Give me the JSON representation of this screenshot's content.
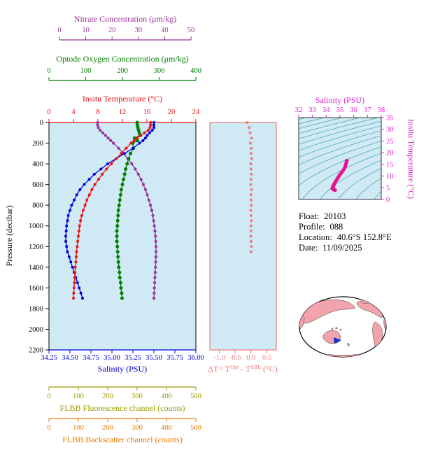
{
  "colors": {
    "nitrate": "#993399",
    "oxygen": "#007f00",
    "temperature": "#ee1111",
    "salinity": "#0000dd",
    "pressure": "#000000",
    "fluorescence": "#9a9a00",
    "backscatter": "#ee7700",
    "delta": "#ef7b7b",
    "ts_text": "#dd22cc",
    "ts_curve": "#ea1190",
    "contour": "#3aa3a3",
    "plot_bg": "#cfe9f5",
    "land": "#f2a3ab",
    "marker": "#1133cc"
  },
  "axes": {
    "nitrate": {
      "title": "Nitrate Concentration (μm/kg)",
      "ticks": [
        "0",
        "10",
        "20",
        "30",
        "40",
        "50"
      ],
      "min": 0,
      "max": 50
    },
    "oxygen": {
      "title": "Optode Oxygen Concentration (μm/kg)",
      "ticks": [
        "0",
        "100",
        "200",
        "300",
        "400"
      ],
      "min": 0,
      "max": 400
    },
    "temperature": {
      "title": "Insitu Temperature (°C)",
      "ticks": [
        "0",
        "4",
        "8",
        "12",
        "16",
        "20",
        "24"
      ],
      "min": 0,
      "max": 24
    },
    "pressure": {
      "title": "Pressure (decibar)",
      "ticks": [
        "0",
        "200",
        "400",
        "600",
        "800",
        "1000",
        "1200",
        "1400",
        "1600",
        "1800",
        "2000",
        "2200"
      ],
      "min": 0,
      "max": 2200
    },
    "salinity": {
      "title": "Salinity (PSU)",
      "ticks": [
        "34.25",
        "34.50",
        "34.75",
        "35.00",
        "35.25",
        "35.50",
        "35.75",
        "36.00"
      ],
      "min": 34.25,
      "max": 36.0
    },
    "fluorescence": {
      "title": "FLBB Fluorescence channel (counts)",
      "ticks": [
        "0",
        "100",
        "200",
        "300",
        "400",
        "500"
      ],
      "min": 0,
      "max": 500
    },
    "backscatter": {
      "title": "FLBB Backscatter channel (counts)",
      "ticks": [
        "0",
        "100",
        "200",
        "300",
        "400",
        "500"
      ],
      "min": 0,
      "max": 500
    },
    "delta": {
      "title_parts": [
        {
          "t": "ΔT= T"
        },
        {
          "t": "Opt",
          "sup": true
        },
        {
          "t": " - T"
        },
        {
          "t": "SBE",
          "sup": true
        },
        {
          "t": " (°C)"
        }
      ],
      "ticks": [
        "-1.0",
        "-0.5",
        "0.0",
        "0.5"
      ],
      "min": -1.3,
      "max": 0.8
    },
    "ts_x": {
      "title": "Salinity (PSU)",
      "ticks": [
        "32",
        "33",
        "34",
        "35",
        "36",
        "37",
        "38"
      ],
      "min": 32,
      "max": 38
    },
    "ts_y": {
      "title": "Insitu Temperature (°C)",
      "ticks": [
        "0",
        "5",
        "10",
        "15",
        "20",
        "25",
        "30",
        "35"
      ],
      "min": 0,
      "max": 35
    }
  },
  "info": {
    "lines": [
      {
        "label": "Float:",
        "value": "20103"
      },
      {
        "label": "Profile:",
        "value": "088"
      },
      {
        "label": "Location:",
        "value": "40.6°S 152.8°E"
      },
      {
        "label": "Date:",
        "value": "11/09/2025"
      }
    ]
  },
  "chart_data": {
    "type": "line",
    "description": "BGC Argo float vertical profiles plotted against pressure (decibar, 0 at surface, increasing downward). Each series uses its own colored top/bottom axis.",
    "pressure": [
      0,
      25,
      50,
      75,
      100,
      125,
      150,
      175,
      200,
      250,
      300,
      350,
      400,
      450,
      500,
      550,
      600,
      650,
      700,
      750,
      800,
      850,
      900,
      950,
      1000,
      1050,
      1100,
      1150,
      1200,
      1250,
      1300,
      1350,
      1400,
      1450,
      1500,
      1550,
      1600,
      1650,
      1700
    ],
    "series": [
      {
        "name": "Insitu Temperature (°C)",
        "axis": "temperature",
        "values": [
          16.6,
          16.6,
          16.5,
          16.2,
          15.6,
          15.0,
          14.4,
          13.9,
          13.4,
          12.6,
          11.8,
          11.0,
          10.2,
          9.4,
          8.7,
          8.1,
          7.5,
          7.0,
          6.6,
          6.2,
          5.9,
          5.6,
          5.35,
          5.15,
          5.0,
          4.9,
          4.8,
          4.7,
          4.6,
          4.5,
          4.45,
          4.4,
          4.3,
          4.25,
          4.2,
          4.15,
          4.1,
          4.05,
          4.0
        ]
      },
      {
        "name": "Salinity (PSU)",
        "axis": "salinity",
        "values": [
          35.5,
          35.5,
          35.5,
          35.48,
          35.45,
          35.42,
          35.4,
          35.37,
          35.33,
          35.25,
          35.15,
          35.05,
          34.95,
          34.87,
          34.79,
          34.73,
          34.67,
          34.62,
          34.58,
          34.55,
          34.52,
          34.5,
          34.48,
          34.47,
          34.46,
          34.455,
          34.45,
          34.45,
          34.46,
          34.47,
          34.49,
          34.51,
          34.53,
          34.55,
          34.57,
          34.59,
          34.61,
          34.63,
          34.65
        ]
      },
      {
        "name": "Optode Oxygen Concentration (μm/kg)",
        "axis": "oxygen",
        "values": [
          240,
          241,
          242,
          244,
          246,
          248,
          233,
          241,
          228,
          230,
          222,
          217,
          213,
          209,
          206,
          203,
          200,
          197,
          195,
          193,
          191,
          189,
          188,
          187,
          186,
          185,
          185,
          185,
          186,
          187,
          188,
          189,
          190,
          192,
          193,
          195,
          196,
          198,
          199
        ]
      },
      {
        "name": "Nitrate Concentration (μm/kg)",
        "axis": "nitrate",
        "values": [
          14.5,
          14.5,
          14.8,
          15.5,
          16.5,
          17.5,
          18.5,
          19.5,
          20.5,
          22.5,
          24.3,
          26.0,
          27.5,
          28.8,
          30.0,
          31.0,
          31.9,
          32.7,
          33.4,
          34.0,
          34.6,
          35.1,
          35.5,
          35.8,
          36.1,
          36.3,
          36.5,
          36.6,
          36.7,
          36.7,
          36.7,
          36.6,
          36.5,
          36.4,
          36.3,
          36.2,
          36.1,
          36.0,
          35.9
        ]
      }
    ],
    "delta_t": {
      "name": "ΔT = T_Optode - T_SBE (°C)",
      "pressure": [
        0,
        50,
        100,
        150,
        200,
        250,
        300,
        350,
        400,
        450,
        500,
        550,
        600,
        650,
        700,
        750,
        800,
        850,
        900,
        950,
        1000,
        1050,
        1100,
        1150,
        1200,
        1250
      ],
      "values": [
        -0.12,
        -0.06,
        -0.03,
        0.02,
        -0.02,
        0.01,
        0,
        0.02,
        -0.01,
        0,
        0.01,
        0,
        -0.01,
        0.01,
        0,
        0,
        0.01,
        -0.01,
        0,
        0.01,
        0,
        0,
        -0.01,
        0,
        0.01,
        0
      ]
    },
    "ts_diagram": {
      "note": "T-S diagram: salinity series vs temperature series from the same profile, over isopycnal contours",
      "sigma_contours": [
        15,
        16,
        17,
        18,
        19,
        20,
        21,
        22,
        23,
        24,
        25,
        26,
        27,
        28,
        29,
        30
      ]
    }
  }
}
